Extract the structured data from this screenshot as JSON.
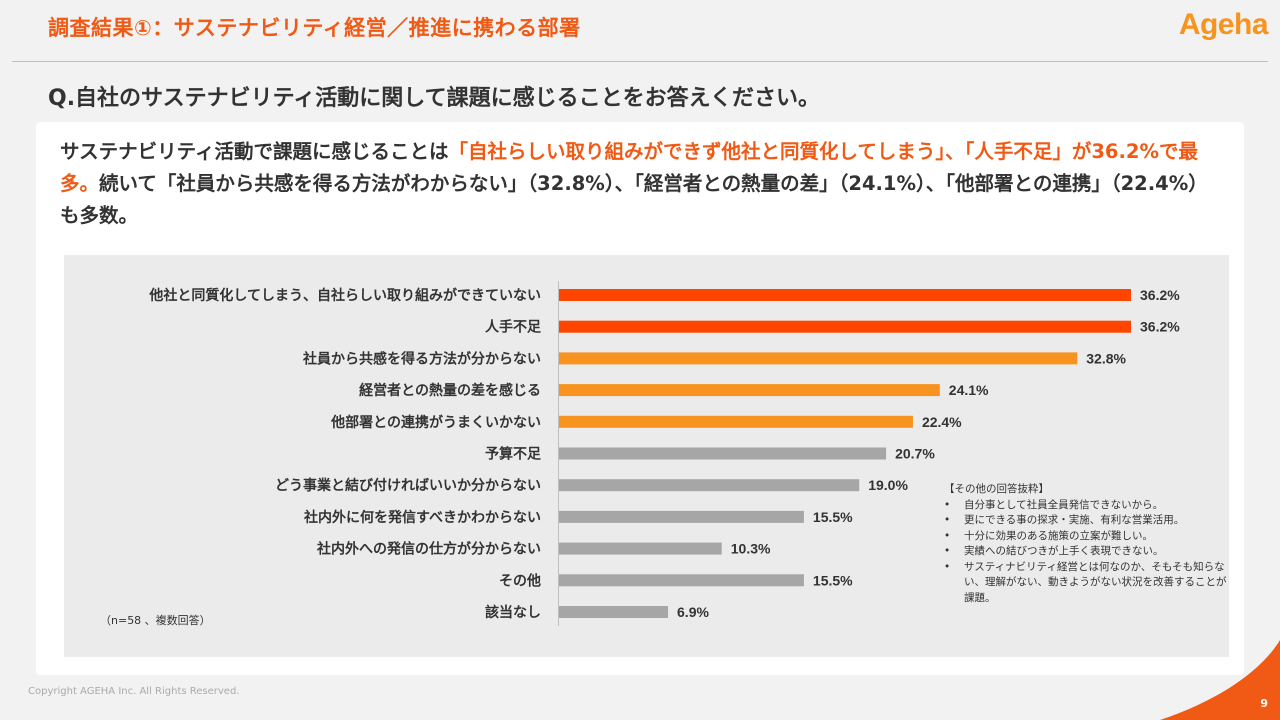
{
  "header": {
    "title": "調査結果①：サステナビリティ経営／推進に携わる部署",
    "logo_text": "Ageha"
  },
  "question": "Q.自社のサステナビリティ活動に関して課題に感じることをお答えください。",
  "summary": {
    "part1": "サステナビリティ活動で課題に感じることは",
    "highlight": "「自社らしい取り組みができず他社と同質化してしまう」、「人手不足」が36.2%で最多。",
    "part2": "続いて「社員から共感を得る方法がわからない」（32.8%）、「経営者との熱量の差」（24.1%）、「他部署との連携」（22.4%）も多数。"
  },
  "chart_data": {
    "type": "bar",
    "orientation": "horizontal",
    "categories": [
      "他社と同質化してしまう、自社らしい取り組みができていない",
      "人手不足",
      "社員から共感を得る方法が分からない",
      "経営者との熱量の差を感じる",
      "他部署との連携がうまくいかない",
      "予算不足",
      "どう事業と結び付ければいいか分からない",
      "社内外に何を発信すべきかわからない",
      "社内外への発信の仕方が分からない",
      "その他",
      "該当なし"
    ],
    "values": [
      36.2,
      36.2,
      32.8,
      24.1,
      22.4,
      20.7,
      19.0,
      15.5,
      10.3,
      15.5,
      6.9
    ],
    "labels": [
      "36.2%",
      "36.2%",
      "32.8%",
      "24.1%",
      "22.4%",
      "20.7%",
      "19.0%",
      "15.5%",
      "10.3%",
      "15.5%",
      "6.9%"
    ],
    "bar_colors": [
      "#ff4500",
      "#ff4500",
      "#f7931e",
      "#f7931e",
      "#f7931e",
      "#a6a6a6",
      "#a6a6a6",
      "#a6a6a6",
      "#a6a6a6",
      "#a6a6a6",
      "#a6a6a6"
    ],
    "xlim": [
      0,
      36.2
    ],
    "grid": false,
    "legend": "none"
  },
  "note": "（n=58 、複数回答）",
  "comments": {
    "heading": "【その他の回答抜粋】",
    "items": [
      "自分事として社員全員発信できないから。",
      "更にできる事の探求・実施、有利な営業活用。",
      "十分に効果のある施策の立案が難しい。",
      "実績への結びつきが上手く表現できない。",
      "サスティナビリティ経営とは何なのか、そもそも知らない、理解がない、動きようがない状況を改善することが課題。"
    ]
  },
  "footer": {
    "copyright": "Copyright AGEHA Inc. All Rights Reserved.",
    "page": "9"
  }
}
